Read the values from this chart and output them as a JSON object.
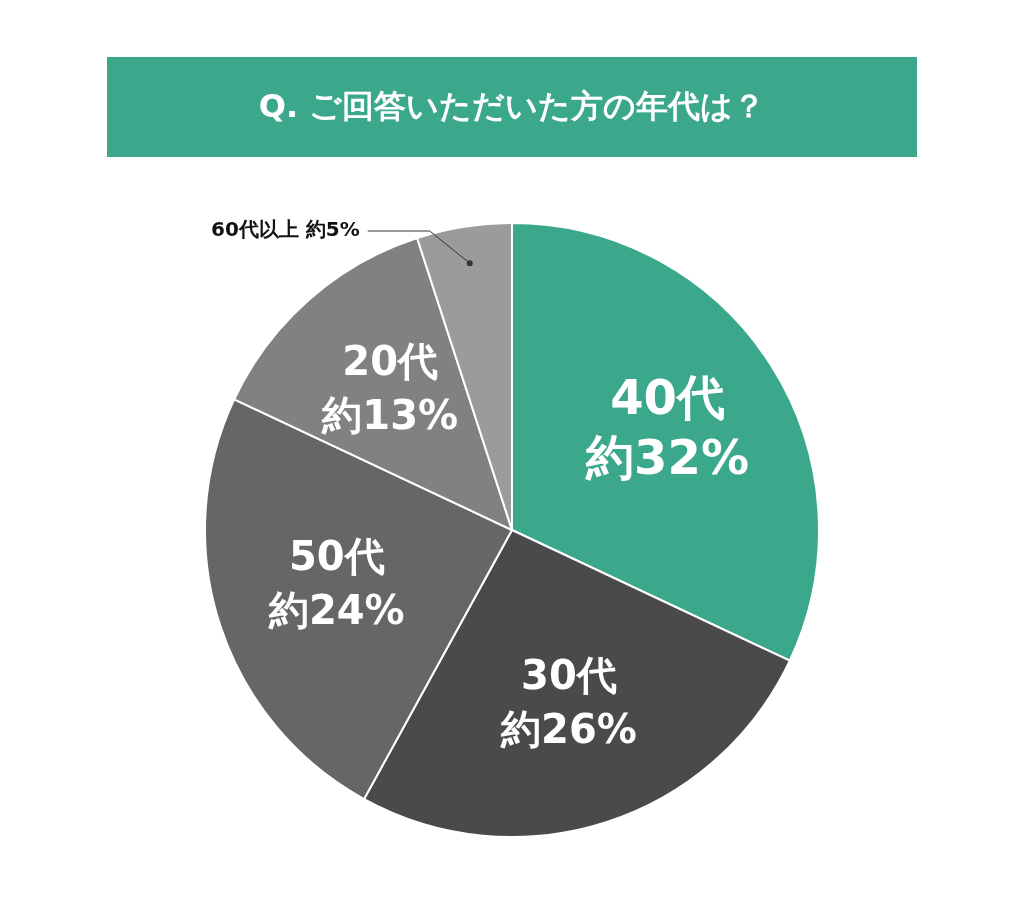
{
  "chart_data": {
    "type": "pie",
    "title": "Q. ご回答いただいた方の年代は？",
    "categories": [
      "40代",
      "30代",
      "50代",
      "20代",
      "60代以上"
    ],
    "values": [
      32,
      26,
      24,
      13,
      5
    ],
    "colors": [
      "#3ca88b",
      "#4a4a4a",
      "#666666",
      "#818181",
      "#9b9b9b"
    ],
    "value_labels": [
      "約32%",
      "約26%",
      "約24%",
      "約13%",
      "約5%"
    ],
    "legend": false
  }
}
